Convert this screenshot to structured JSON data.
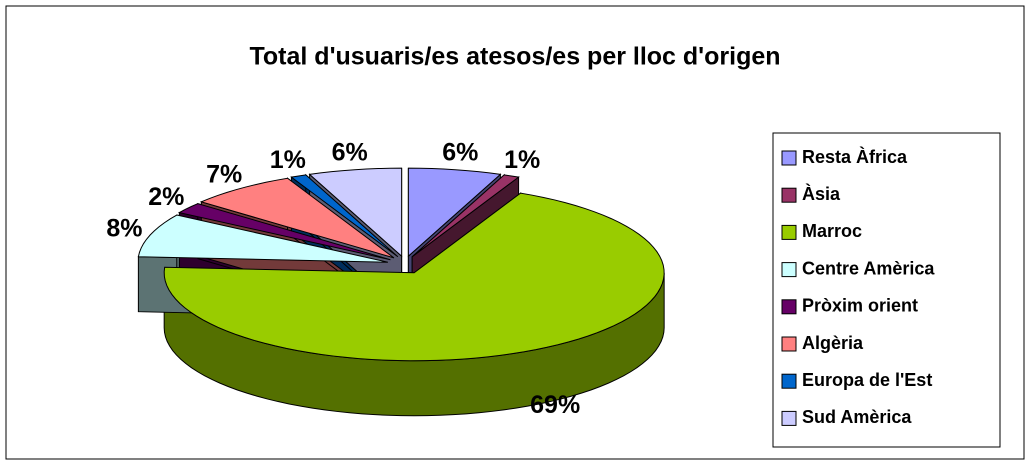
{
  "chart_data": {
    "type": "pie3d",
    "title": "Total d'usuaris/es atesos/es per lloc d'origen",
    "categories": [
      "Resta Àfrica",
      "Àsia",
      "Marroc",
      "Centre Amèrica",
      "Pròxim orient",
      "Algèria",
      "Europa de l'Est",
      "Sud Amèrica"
    ],
    "values": [
      6,
      1,
      69,
      8,
      2,
      7,
      1,
      6
    ],
    "value_labels": [
      "6%",
      "1%",
      "69%",
      "8%",
      "2%",
      "7%",
      "1%",
      "6%"
    ],
    "colors": [
      "#9999ff",
      "#993366",
      "#99cc00",
      "#ccffff",
      "#660066",
      "#ff8080",
      "#0066cc",
      "#ccccff"
    ],
    "legend": "right"
  }
}
